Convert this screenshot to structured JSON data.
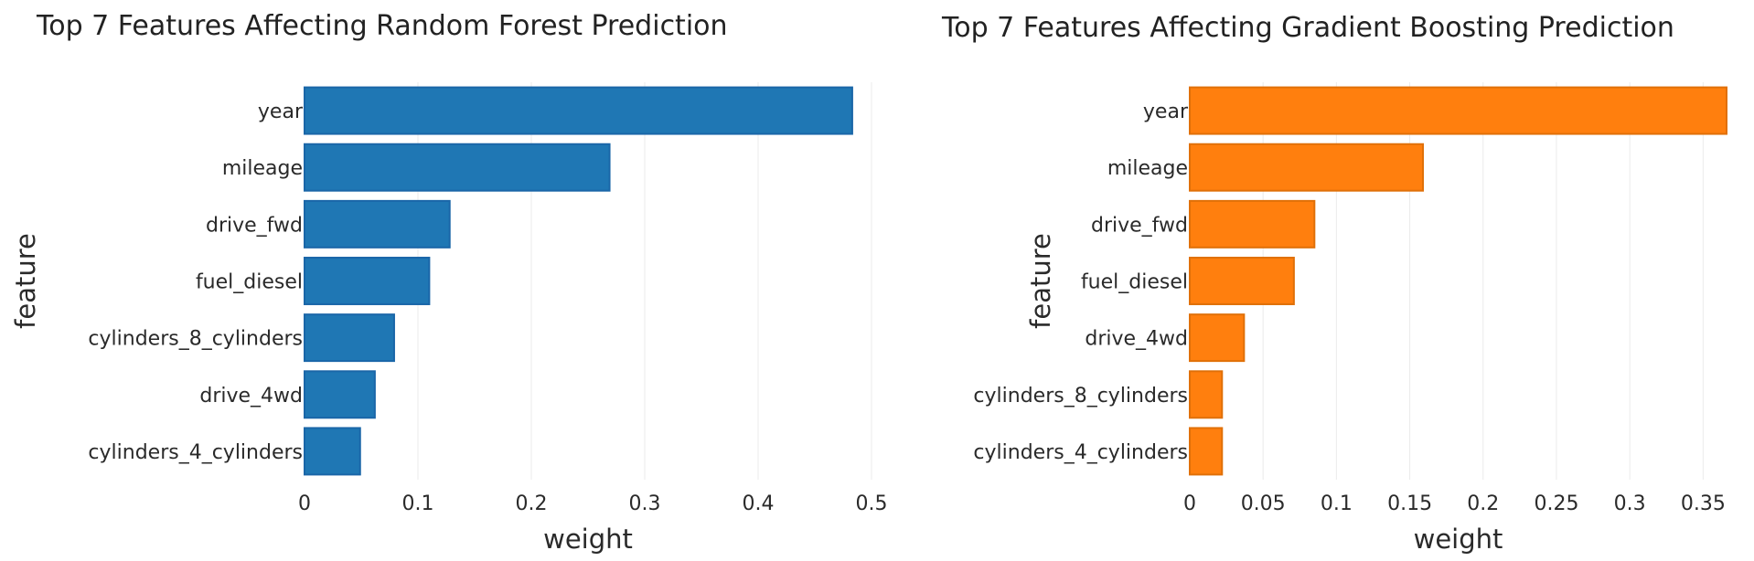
{
  "chart_data": [
    {
      "type": "bar",
      "orientation": "horizontal",
      "title": "Top 7 Features Affecting Random Forest Prediction",
      "xlabel": "weight",
      "ylabel": "feature",
      "categories": [
        "year",
        "mileage",
        "drive_fwd",
        "fuel_diesel",
        "cylinders_8_cylinders",
        "drive_4wd",
        "cylinders_4_cylinders"
      ],
      "values": [
        0.483,
        0.269,
        0.128,
        0.11,
        0.079,
        0.062,
        0.049
      ],
      "xlim": [
        0,
        0.5
      ],
      "xticks": [
        0,
        0.1,
        0.2,
        0.3,
        0.4,
        0.5
      ],
      "xtick_labels": [
        "0",
        "0.1",
        "0.2",
        "0.3",
        "0.4",
        "0.5"
      ],
      "color": "#1f77b4",
      "edge_color": "#1a66a8",
      "grid": true
    },
    {
      "type": "bar",
      "orientation": "horizontal",
      "title": "Top 7 Features Affecting Gradient Boosting Prediction",
      "xlabel": "weight",
      "ylabel": "feature",
      "categories": [
        "year",
        "mileage",
        "drive_fwd",
        "fuel_diesel",
        "drive_4wd",
        "cylinders_8_cylinders",
        "cylinders_4_cylinders"
      ],
      "values": [
        0.366,
        0.159,
        0.085,
        0.071,
        0.037,
        0.022,
        0.022
      ],
      "xlim": [
        0,
        0.366
      ],
      "xticks": [
        0,
        0.05,
        0.1,
        0.15,
        0.2,
        0.25,
        0.3,
        0.35
      ],
      "xtick_labels": [
        "0",
        "0.05",
        "0.1",
        "0.15",
        "0.2",
        "0.25",
        "0.3",
        "0.35"
      ],
      "color": "#ff7f0e",
      "edge_color": "#e07008",
      "grid": true
    }
  ]
}
